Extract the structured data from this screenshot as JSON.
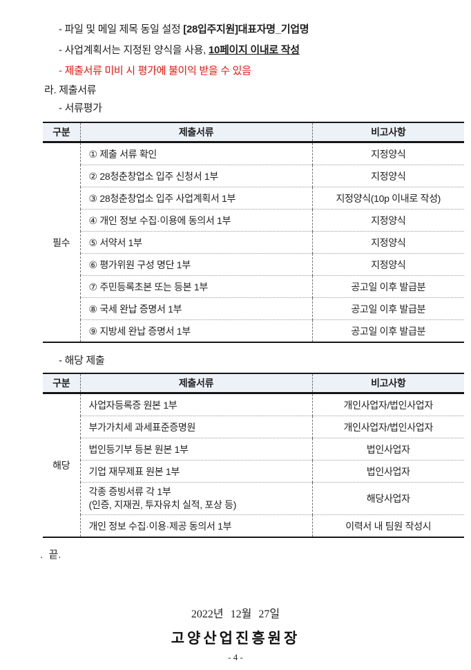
{
  "colors": {
    "table_header_bg": "#edf2f9",
    "warning_red": "#e8150c"
  },
  "intro": {
    "line1_normal": "- 파일 및 메일 제목 동일 설정 ",
    "line1_bold": "[28입주지원]대표자명_기업명",
    "line2_normal": "- 사업계획서는 지정된 양식을 사용, ",
    "line2_bold_underline": "10페이지 이내로 작성",
    "line3_red": "- 제출서류 미비 시 평가에 불이익 받을 수 있음",
    "heading_ra": "라. 제출서류",
    "sub_document_evaluation": "- 서류평가",
    "sub_applicable_submission": "- 해당 제출"
  },
  "table1": {
    "headers": [
      "구분",
      "제출서류",
      "비고사항"
    ],
    "group_label": "필수",
    "rows": [
      {
        "doc": "① 제출 서류 확인",
        "note": "지정양식"
      },
      {
        "doc": "② 28청춘창업소 입주 신청서 1부",
        "note": "지정양식"
      },
      {
        "doc": "③ 28청춘창업소 입주 사업계획서 1부",
        "note": "지정양식(10p 이내로 작성)"
      },
      {
        "doc": "④ 개인 정보 수집·이용에 동의서 1부",
        "note": "지정양식"
      },
      {
        "doc": "⑤ 서약서 1부",
        "note": "지정양식"
      },
      {
        "doc": "⑥ 평가위원 구성 명단 1부",
        "note": "지정양식"
      },
      {
        "doc": "⑦ 주민등록초본 또는 등본 1부",
        "note": "공고일 이후 발급분"
      },
      {
        "doc": "⑧ 국세 완납 증명서 1부",
        "note": "공고일 이후 발급분"
      },
      {
        "doc": "⑨ 지방세 완납 증명서 1부",
        "note": "공고일 이후 발급분"
      }
    ]
  },
  "table2": {
    "headers": [
      "구분",
      "제출서류",
      "비고사항"
    ],
    "group_label": "해당",
    "rows": [
      {
        "doc": "사업자등록증 원본 1부",
        "note": "개인사업자/법인사업자"
      },
      {
        "doc": "부가가치세 과세표준증명원",
        "note": "개인사업자/법인사업자"
      },
      {
        "doc": "법인등기부 등본 원본 1부",
        "note": "법인사업자"
      },
      {
        "doc": "기업 재무제표 원본 1부",
        "note": "법인사업자"
      },
      {
        "doc": "각종 증빙서류 각 1부",
        "doc2": "(인증, 지재권, 투자유치 실적, 포상 등)",
        "note": "해당사업자"
      },
      {
        "doc": "개인 정보 수집·이용·제공 동의서 1부",
        "note": "이력서 내 팀원 작성시"
      }
    ]
  },
  "end_mark": ".  끝.",
  "footer": {
    "date": "2022년 12월 27일",
    "signature": "고양산업진흥원장",
    "page_number": "- 4 -"
  }
}
